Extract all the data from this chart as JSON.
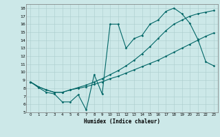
{
  "xlabel": "Humidex (Indice chaleur)",
  "bg_color": "#cce8e8",
  "grid_color": "#aacccc",
  "line_color": "#006666",
  "xlim": [
    -0.5,
    23.5
  ],
  "ylim": [
    5,
    18.5
  ],
  "xticks": [
    0,
    1,
    2,
    3,
    4,
    5,
    6,
    7,
    8,
    9,
    10,
    11,
    12,
    13,
    14,
    15,
    16,
    17,
    18,
    19,
    20,
    21,
    22,
    23
  ],
  "yticks": [
    5,
    6,
    7,
    8,
    9,
    10,
    11,
    12,
    13,
    14,
    15,
    16,
    17,
    18
  ],
  "line1_x": [
    0,
    1,
    2,
    3,
    4,
    5,
    6,
    7,
    8,
    9,
    10,
    11,
    12,
    13,
    14,
    15,
    16,
    17,
    18,
    19,
    20,
    21,
    22,
    23
  ],
  "line1_y": [
    8.8,
    8.1,
    7.5,
    7.3,
    6.3,
    6.3,
    7.2,
    5.3,
    9.7,
    7.3,
    16.0,
    16.0,
    13.0,
    14.2,
    14.6,
    16.0,
    16.5,
    17.6,
    18.0,
    17.3,
    16.1,
    14.1,
    11.3,
    10.8
  ],
  "line2_x": [
    0,
    1,
    2,
    3,
    4,
    5,
    6,
    7,
    8,
    9,
    10,
    11,
    12,
    13,
    14,
    15,
    16,
    17,
    18,
    19,
    20,
    21,
    22,
    23
  ],
  "line2_y": [
    8.8,
    8.2,
    7.8,
    7.5,
    7.5,
    7.8,
    8.1,
    8.4,
    8.8,
    9.2,
    9.7,
    10.2,
    10.8,
    11.5,
    12.3,
    13.2,
    14.2,
    15.2,
    16.0,
    16.5,
    17.0,
    17.3,
    17.5,
    17.7
  ],
  "line3_x": [
    0,
    1,
    2,
    3,
    4,
    5,
    6,
    7,
    8,
    9,
    10,
    11,
    12,
    13,
    14,
    15,
    16,
    17,
    18,
    19,
    20,
    21,
    22,
    23
  ],
  "line3_y": [
    8.8,
    8.2,
    7.8,
    7.5,
    7.5,
    7.8,
    8.0,
    8.2,
    8.5,
    8.8,
    9.2,
    9.5,
    9.9,
    10.3,
    10.7,
    11.1,
    11.5,
    12.0,
    12.5,
    13.0,
    13.5,
    14.0,
    14.5,
    14.9
  ]
}
